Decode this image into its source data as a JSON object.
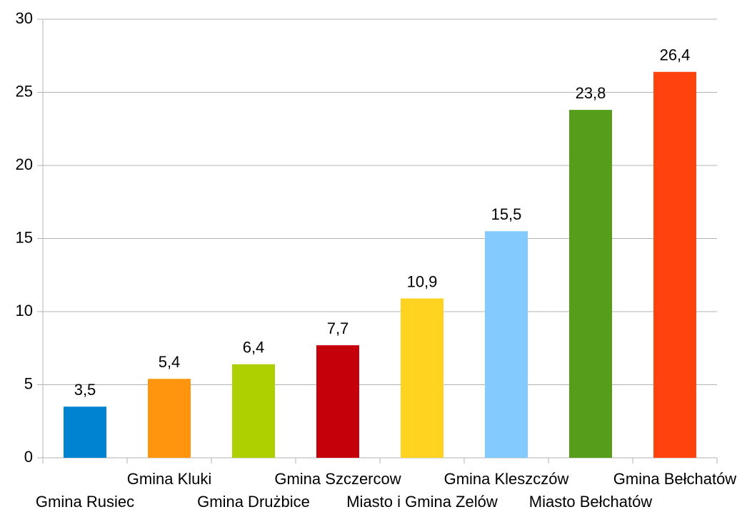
{
  "chart_data": {
    "type": "bar",
    "categories": [
      "Gmina Rusiec",
      "Gmina Kluki",
      "Gmina Drużbice",
      "Gmina Szczercow",
      "Miasto i Gmina Zelów",
      "Gmina Kleszczów",
      "Miasto Bełchatów",
      "Gmina Bełchatów"
    ],
    "values": [
      3.5,
      5.4,
      6.4,
      7.7,
      10.9,
      15.5,
      23.8,
      26.4
    ],
    "value_labels": [
      "3,5",
      "5,4",
      "6,4",
      "7,7",
      "10,9",
      "15,5",
      "23,8",
      "26,4"
    ],
    "colors": [
      "#0084d1",
      "#ff950e",
      "#aecf00",
      "#c5000b",
      "#ffd320",
      "#83caff",
      "#579d1c",
      "#ff420e"
    ],
    "ylim": [
      0,
      30
    ],
    "yticks": [
      0,
      5,
      10,
      15,
      20,
      25,
      30
    ],
    "grid": true
  }
}
